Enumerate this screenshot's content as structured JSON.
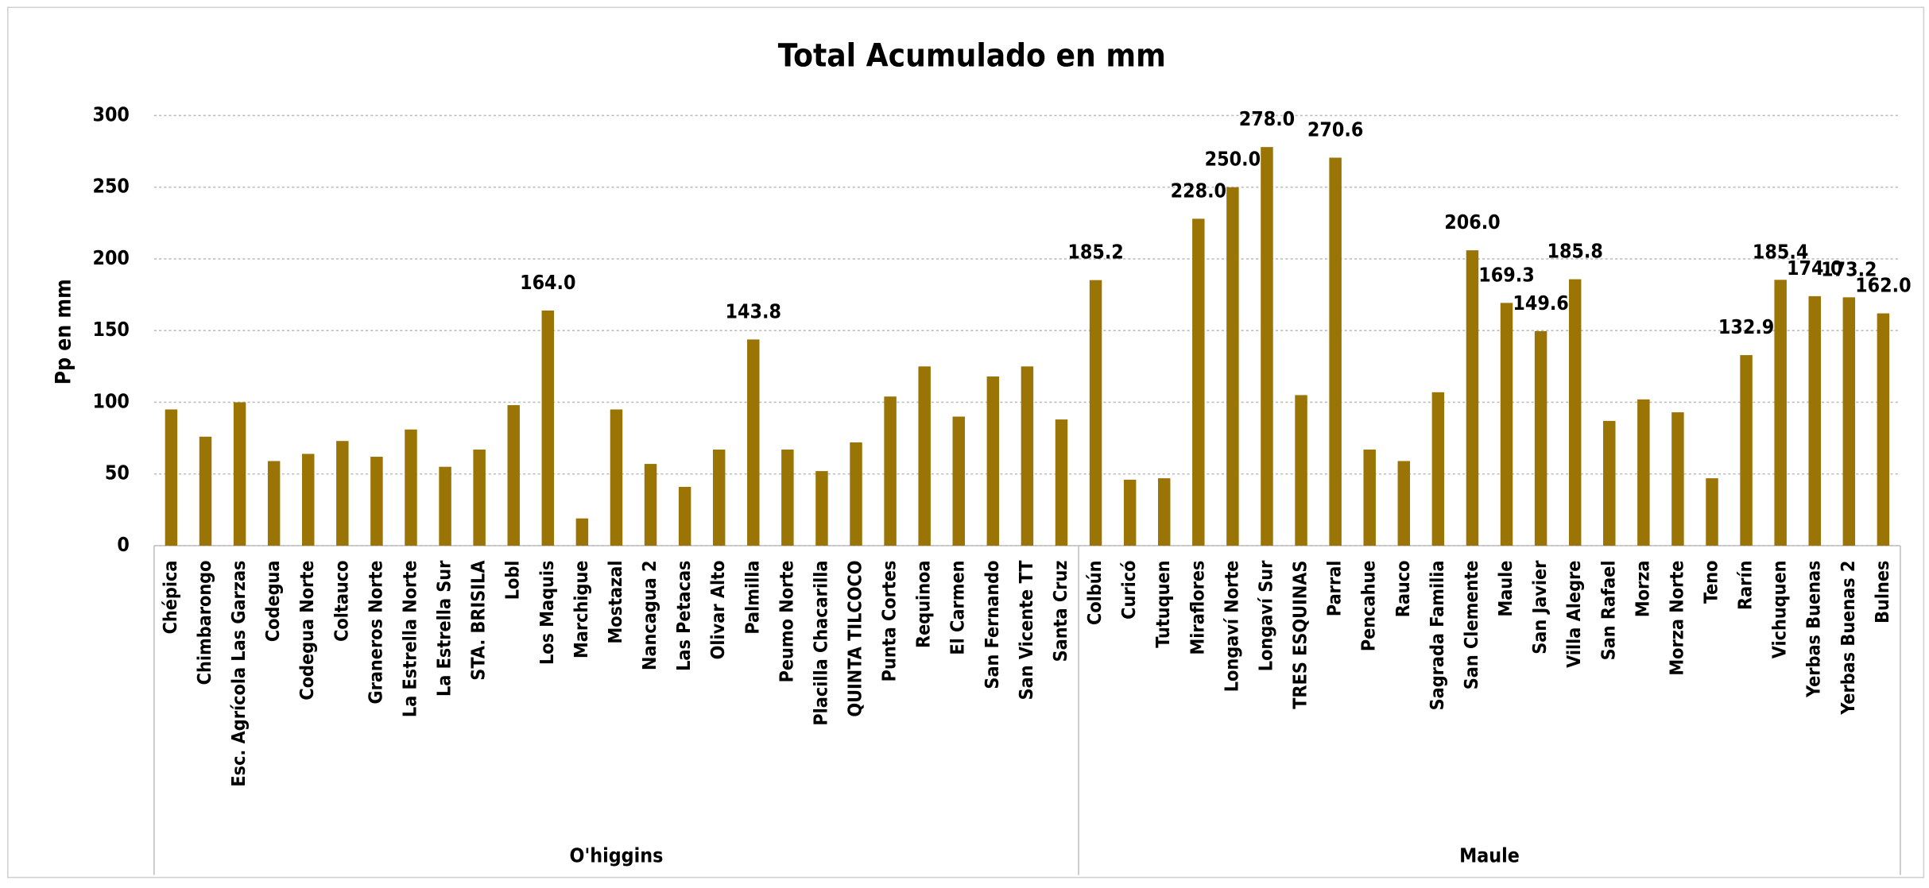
{
  "chart_data": {
    "type": "bar",
    "title": "Total Acumulado en mm",
    "y_label": "Pp en mm",
    "color": "#9b7406",
    "grid": true,
    "ylim": [
      0,
      300
    ],
    "yticks": [
      0,
      50,
      100,
      150,
      200,
      250,
      300
    ],
    "groups": [
      {
        "label": "O'higgins",
        "categories": [
          "Chépica",
          "Chimbarongo",
          "Esc. Agrícola Las Garzas",
          "Codegua",
          "Codegua Norte",
          "Coltauco",
          "Graneros Norte",
          "La Estrella Norte",
          "La Estrella Sur",
          "STA. BRISILA",
          "Lobl",
          "Los Maquis",
          "Marchigue",
          "Mostazal",
          "Nancagua 2",
          "Las Petacas",
          "Olivar Alto",
          "Palmilla",
          "Peumo Norte",
          "Placilla Chacarilla",
          "QUINTA TILCOCO",
          "Punta Cortes",
          "Requinoa",
          "El Carmen",
          "San Fernando",
          "San Vicente TT",
          "Santa Cruz"
        ],
        "values": [
          95,
          76,
          100,
          59,
          64,
          73,
          62,
          81,
          55,
          67,
          98,
          164,
          19,
          95,
          57,
          41,
          67,
          143.8,
          67,
          52,
          72,
          104,
          125,
          90,
          118,
          125,
          88
        ],
        "value_labels": [
          null,
          null,
          null,
          null,
          null,
          null,
          null,
          null,
          null,
          null,
          null,
          "164.0",
          null,
          null,
          null,
          null,
          null,
          "143.8",
          null,
          null,
          null,
          null,
          null,
          null,
          null,
          null,
          null
        ]
      },
      {
        "label": "Maule",
        "categories": [
          "Colbún",
          "Curicó",
          "Tutuquen",
          "Miraflores",
          "Longaví Norte",
          "Longaví Sur",
          "TRES ESQUINAS",
          "Parral",
          "Pencahue",
          "Rauco",
          "Sagrada Familia",
          "San Clemente",
          "Maule",
          "San Javier",
          "Villa Alegre",
          "San Rafael",
          "Morza",
          "Morza Norte",
          "Teno",
          "Rarín",
          "Vichuquen",
          "Yerbas Buenas",
          "Yerbas Buenas 2",
          "Bulnes"
        ],
        "values": [
          185.2,
          46,
          47,
          228,
          250,
          278,
          105,
          270.6,
          67,
          59,
          107,
          206,
          169.3,
          149.6,
          185.8,
          87,
          102,
          93,
          47,
          132.9,
          185.4,
          174,
          173.2,
          162
        ],
        "value_labels": [
          "185.2",
          null,
          null,
          "228.0",
          "250.0",
          "278.0",
          null,
          "270.6",
          null,
          null,
          null,
          "206.0",
          "169.3",
          "149.6",
          "185.8",
          null,
          null,
          null,
          null,
          "132.9",
          "185.4",
          "174.0",
          "173.2",
          "162.0"
        ]
      }
    ]
  }
}
